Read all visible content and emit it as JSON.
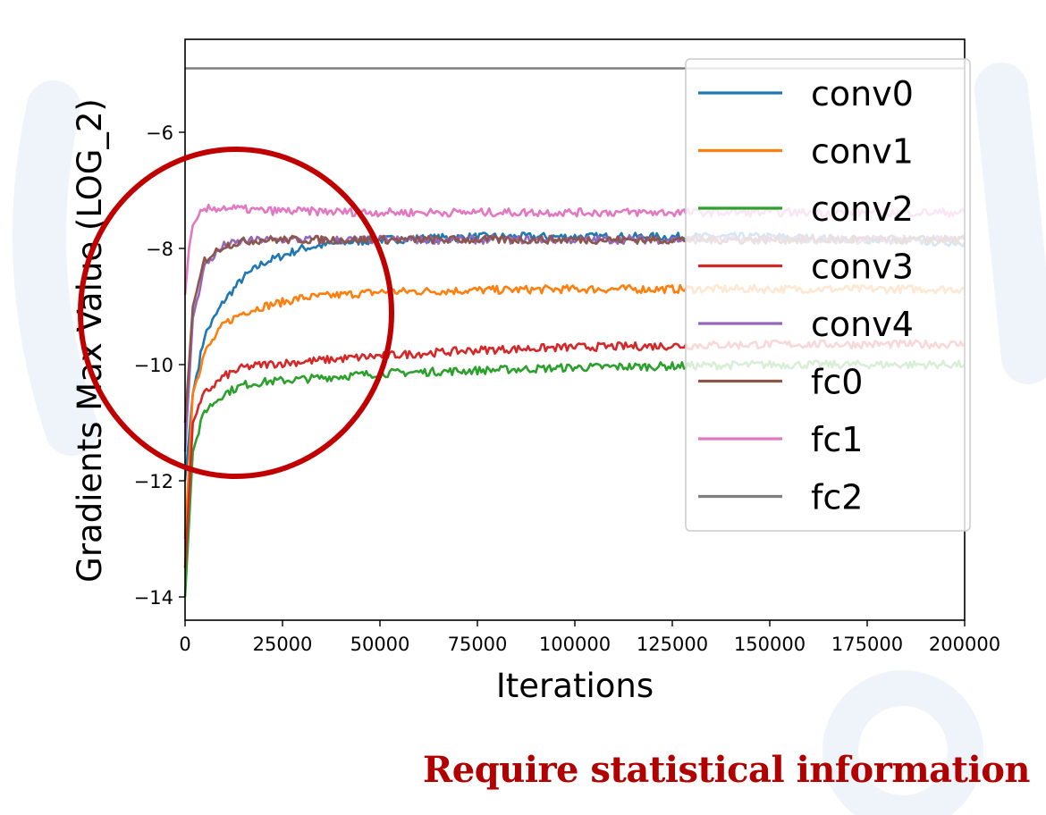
{
  "caption": "Require statistical information",
  "colors": {
    "caption": "#b00000",
    "highlight_circle": "#c00000",
    "background_watermark": "#eef4fa"
  },
  "chart_data": {
    "type": "line",
    "title": "",
    "xlabel": "Iterations",
    "ylabel": "Gradients Max Value (LOG_2)",
    "xlim": [
      0,
      200000
    ],
    "ylim": [
      -14.4,
      -4.4
    ],
    "xticks": [
      0,
      25000,
      50000,
      75000,
      100000,
      125000,
      150000,
      175000,
      200000
    ],
    "yticks": [
      -14,
      -12,
      -10,
      -8,
      -6
    ],
    "ytick_labels": [
      "−14",
      "−12",
      "−10",
      "−8",
      "−6"
    ],
    "grid": false,
    "legend_position": "top-right",
    "annotation": "red circle highlighting the early iterations (0–50000)",
    "series": [
      {
        "name": "conv0",
        "color": "#1f77b4",
        "x": [
          0,
          2000,
          5000,
          10000,
          15000,
          20000,
          30000,
          40000,
          50000,
          75000,
          100000,
          150000,
          200000
        ],
        "values": [
          -12.0,
          -10.5,
          -9.5,
          -8.9,
          -8.5,
          -8.25,
          -8.0,
          -7.9,
          -7.85,
          -7.8,
          -7.8,
          -7.8,
          -7.9
        ]
      },
      {
        "name": "conv1",
        "color": "#ff7f0e",
        "x": [
          0,
          2000,
          5000,
          10000,
          15000,
          20000,
          30000,
          40000,
          50000,
          75000,
          100000,
          150000,
          200000
        ],
        "values": [
          -13.0,
          -10.5,
          -9.8,
          -9.3,
          -9.1,
          -9.0,
          -8.85,
          -8.8,
          -8.75,
          -8.72,
          -8.7,
          -8.7,
          -8.7
        ]
      },
      {
        "name": "conv2",
        "color": "#2ca02c",
        "x": [
          0,
          2000,
          5000,
          10000,
          15000,
          20000,
          30000,
          40000,
          50000,
          75000,
          100000,
          150000,
          200000
        ],
        "values": [
          -14.0,
          -11.5,
          -10.8,
          -10.5,
          -10.35,
          -10.3,
          -10.25,
          -10.2,
          -10.15,
          -10.1,
          -10.05,
          -10.0,
          -10.0
        ]
      },
      {
        "name": "conv3",
        "color": "#d62728",
        "x": [
          0,
          2000,
          5000,
          10000,
          15000,
          20000,
          30000,
          40000,
          50000,
          75000,
          100000,
          150000,
          200000
        ],
        "values": [
          -13.5,
          -11.0,
          -10.5,
          -10.2,
          -10.05,
          -10.0,
          -9.95,
          -9.9,
          -9.85,
          -9.75,
          -9.7,
          -9.65,
          -9.65
        ]
      },
      {
        "name": "conv4",
        "color": "#9467bd",
        "x": [
          0,
          2000,
          5000,
          10000,
          15000,
          20000,
          30000,
          40000,
          50000,
          75000,
          100000,
          150000,
          200000
        ],
        "values": [
          -11.5,
          -9.2,
          -8.3,
          -7.95,
          -7.88,
          -7.85,
          -7.85,
          -7.85,
          -7.85,
          -7.85,
          -7.85,
          -7.85,
          -7.85
        ]
      },
      {
        "name": "fc0",
        "color": "#8c564b",
        "x": [
          0,
          2000,
          5000,
          10000,
          15000,
          20000,
          30000,
          40000,
          50000,
          75000,
          100000,
          150000,
          200000
        ],
        "values": [
          -11.0,
          -9.0,
          -8.2,
          -7.95,
          -7.88,
          -7.85,
          -7.85,
          -7.85,
          -7.85,
          -7.85,
          -7.85,
          -7.85,
          -7.85
        ]
      },
      {
        "name": "fc1",
        "color": "#e377c2",
        "x": [
          0,
          1000,
          2000,
          4000,
          6000,
          10000,
          20000,
          50000,
          100000,
          150000,
          200000
        ],
        "values": [
          -8.8,
          -8.0,
          -7.6,
          -7.4,
          -7.32,
          -7.3,
          -7.35,
          -7.38,
          -7.38,
          -7.38,
          -7.38
        ]
      },
      {
        "name": "fc2",
        "color": "#7f7f7f",
        "x": [
          0,
          200000
        ],
        "values": [
          -4.9,
          -4.9
        ]
      }
    ]
  }
}
